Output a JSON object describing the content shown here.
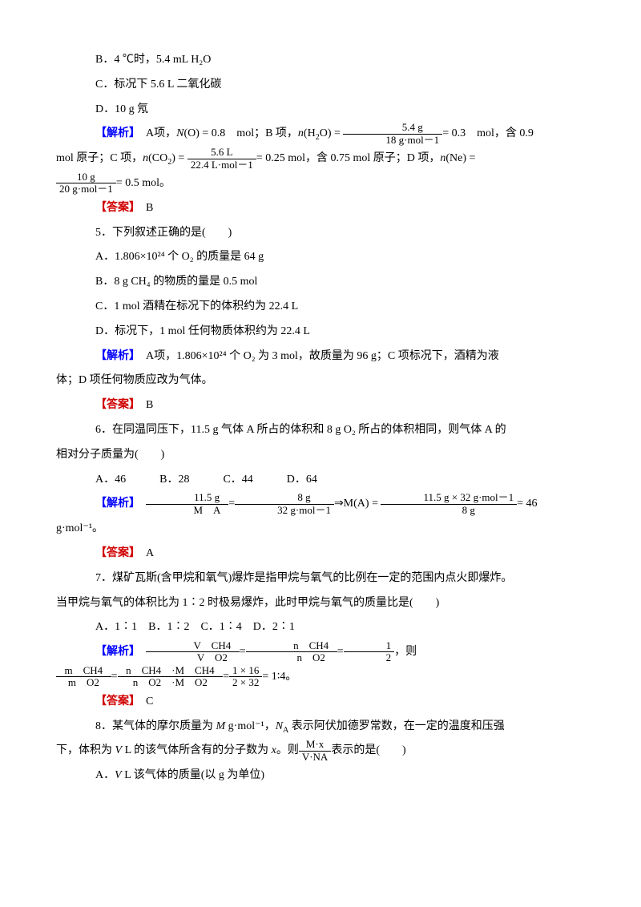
{
  "options_top": {
    "b": "B．4 ℃时，5.4 mL H₂O",
    "c": "C．标况下 5.6 L 二氧化碳",
    "d": "D．10 g 氖"
  },
  "q4": {
    "expl_tag": "【解析】",
    "expl_1": "　A项，",
    "expl_N_O": "N(O) = 0.8　mol；B 项，",
    "expl_nH2O": "n(H₂O) = ",
    "frac1_num": "5.4 g",
    "frac1_den": "18 g·mol－1",
    "expl_after1": "= 0.3　mol，含 0.9",
    "line2_a": "mol 原子；C 项，",
    "line2_nCO2": "n(CO₂) = ",
    "frac2_num": "5.6 L",
    "frac2_den": "22.4 L·mol－1",
    "line2_b": "= 0.25 mol，含 0.75 mol 原子；D 项，",
    "line2_nNe": "n(Ne) = ",
    "frac3_num": "10 g",
    "frac3_den": "20 g·mol－1",
    "line3_end": "= 0.5 mol。",
    "ans_tag": "【答案】",
    "ans": "　B"
  },
  "q5": {
    "stem": "5．下列叙述正确的是(　　)",
    "a": "A．1.806×10²⁴ 个 O₂ 的质量是 64 g",
    "b": "B．8 g CH₄ 的物质的量是 0.5 mol",
    "c": "C．1 mol 酒精在标况下的体积约为 22.4 L",
    "d": "D．标况下，1 mol 任何物质体积约为 22.4 L",
    "expl_tag": "【解析】",
    "expl": "　A项，1.806×10²⁴ 个 O₂ 为 3 mol，故质量为 96 g；C 项标况下，酒精为液",
    "expl2": "体；D 项任何物质应改为气体。",
    "ans_tag": "【答案】",
    "ans": "　B"
  },
  "q6": {
    "stem1": "6．在同温同压下，11.5 g 气体 A 所占的体积和 8 g O₂ 所占的体积相同，则气体 A 的",
    "stem2": "相对分子质量为(　　)",
    "opts": "A．46　　　B．28　　　C．44　　　D．64",
    "expl_tag": "【解析】",
    "frac1_num": "11.5 g",
    "frac1_den": "M　A　",
    "eq": "=",
    "frac2_num": "8 g",
    "frac2_den": "32 g·mol－1",
    "arrow": "⇒M(A) = ",
    "frac3_num": "11.5 g × 32 g·mol－1",
    "frac3_den": "8 g",
    "end": "= 46 g·mol⁻¹。",
    "ans_tag": "【答案】",
    "ans": "　A"
  },
  "q7": {
    "stem1": "7．煤矿瓦斯(含甲烷和氧气)爆炸是指甲烷与氧气的比例在一定的范围内点火即爆炸。",
    "stem2": "当甲烷与氧气的体积比为 1∶2 时极易爆炸，此时甲烷与氧气的质量比是(　　)",
    "opts": "A．1∶1　B．1∶2　C．1∶4　D．2∶1",
    "expl_tag": "【解析】",
    "frac1_num": "V　CH4　",
    "frac1_den": "V　O2　",
    "eq1": "=",
    "frac2_num": "n　CH4　",
    "frac2_den": "n　O2　",
    "eq2": "=",
    "frac3_num": "1",
    "frac3_den": "2",
    "end1": "，则",
    "frac4_num": "m　CH4　",
    "frac4_den": "m　O2　",
    "eq3": "=",
    "frac5_num": "n　CH4　·M　CH4　",
    "frac5_den": "n　O2　·M　O2　",
    "eq4": "=",
    "frac6_num": "1 × 16",
    "frac6_den": "2 × 32",
    "end2": "= 1∶4。",
    "ans_tag": "【答案】",
    "ans": "　C"
  },
  "q8": {
    "stem1_a": "8．某气体的摩尔质量为 ",
    "stem1_M": "M",
    "stem1_b": " g·mol⁻¹，",
    "stem1_NA": "N",
    "stem1_A": "A",
    "stem1_c": " 表示阿伏加德罗常数，在一定的温度和压强",
    "stem2_a": "下，体积为 ",
    "stem2_V": "V",
    "stem2_b": " L 的该气体所含有的分子数为 ",
    "stem2_x": "x",
    "stem2_c": "。则",
    "frac_num": "M·x",
    "frac_den": "V·NA",
    "stem2_d": "表示的是(　　)",
    "a_pre": "A．",
    "a_V": "V",
    "a_post": " L 该气体的质量(以 g 为单位)"
  }
}
